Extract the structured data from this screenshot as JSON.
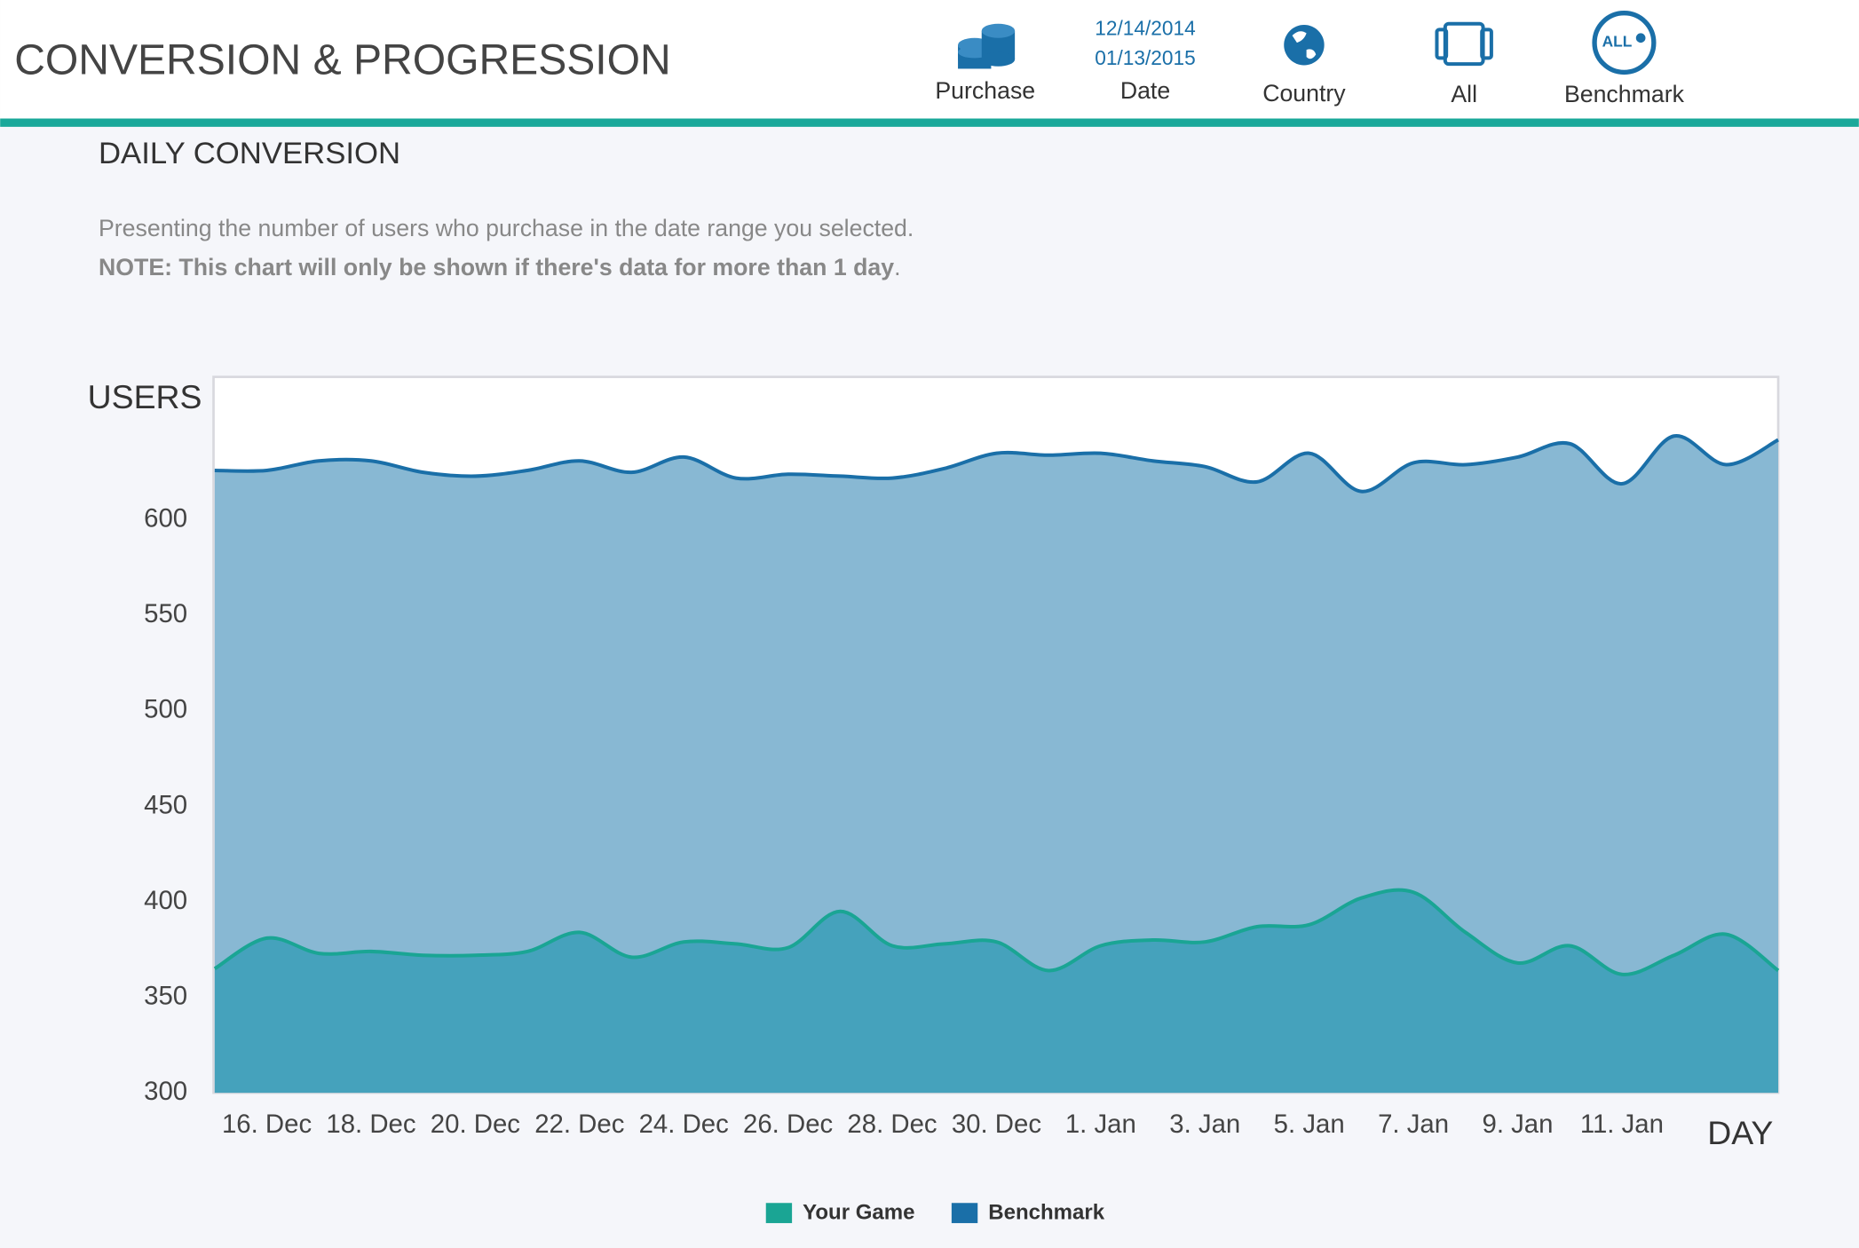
{
  "header": {
    "title": "CONVERSION & PROGRESSION",
    "filters": {
      "purchase": "Purchase",
      "date_from": "12/14/2014",
      "date_to": "01/13/2015",
      "date": "Date",
      "country": "Country",
      "all": "All",
      "benchmark_icon": "ALL",
      "benchmark": "Benchmark"
    }
  },
  "section": {
    "title": "DAILY CONVERSION",
    "description": "Presenting the number of users who purchase in the date range you selected.",
    "note": {
      "bold": "NOTE: This chart will only be shown if there's data for more than 1 day",
      "rest": "."
    }
  },
  "chart_data": {
    "type": "area",
    "y_label": "USERS",
    "x_label": "DAY",
    "categories": [
      null,
      "16. Dec",
      null,
      "18. Dec",
      null,
      "20. Dec",
      null,
      "22. Dec",
      null,
      "24. Dec",
      null,
      "26. Dec",
      null,
      "28. Dec",
      null,
      "30. Dec",
      null,
      "1. Jan",
      null,
      "3. Jan",
      null,
      "5. Jan",
      null,
      "7. Jan",
      null,
      "9. Jan",
      null,
      "11. Jan",
      null,
      null,
      null
    ],
    "series": [
      {
        "name": "Benchmark",
        "color": "#1a6fa8",
        "fill": "#88b8d3",
        "values": [
          626,
          626,
          631,
          631,
          625,
          623,
          626,
          631,
          625,
          633,
          622,
          624,
          623,
          622,
          627,
          635,
          634,
          635,
          631,
          628,
          620,
          635,
          615,
          630,
          629,
          633,
          640,
          619,
          644,
          629,
          642
        ]
      },
      {
        "name": "Your Game",
        "color": "#1aa594",
        "fill": "#2a98b2",
        "values": [
          365,
          381,
          373,
          374,
          372,
          372,
          374,
          384,
          371,
          379,
          378,
          376,
          395,
          377,
          378,
          379,
          364,
          377,
          380,
          379,
          387,
          388,
          402,
          405,
          384,
          368,
          377,
          362,
          372,
          383,
          364
        ]
      }
    ],
    "ylim": [
      300,
      675
    ],
    "yticks": [
      300,
      350,
      400,
      450,
      500,
      550,
      600
    ],
    "grid": false,
    "legend": "bottom"
  }
}
